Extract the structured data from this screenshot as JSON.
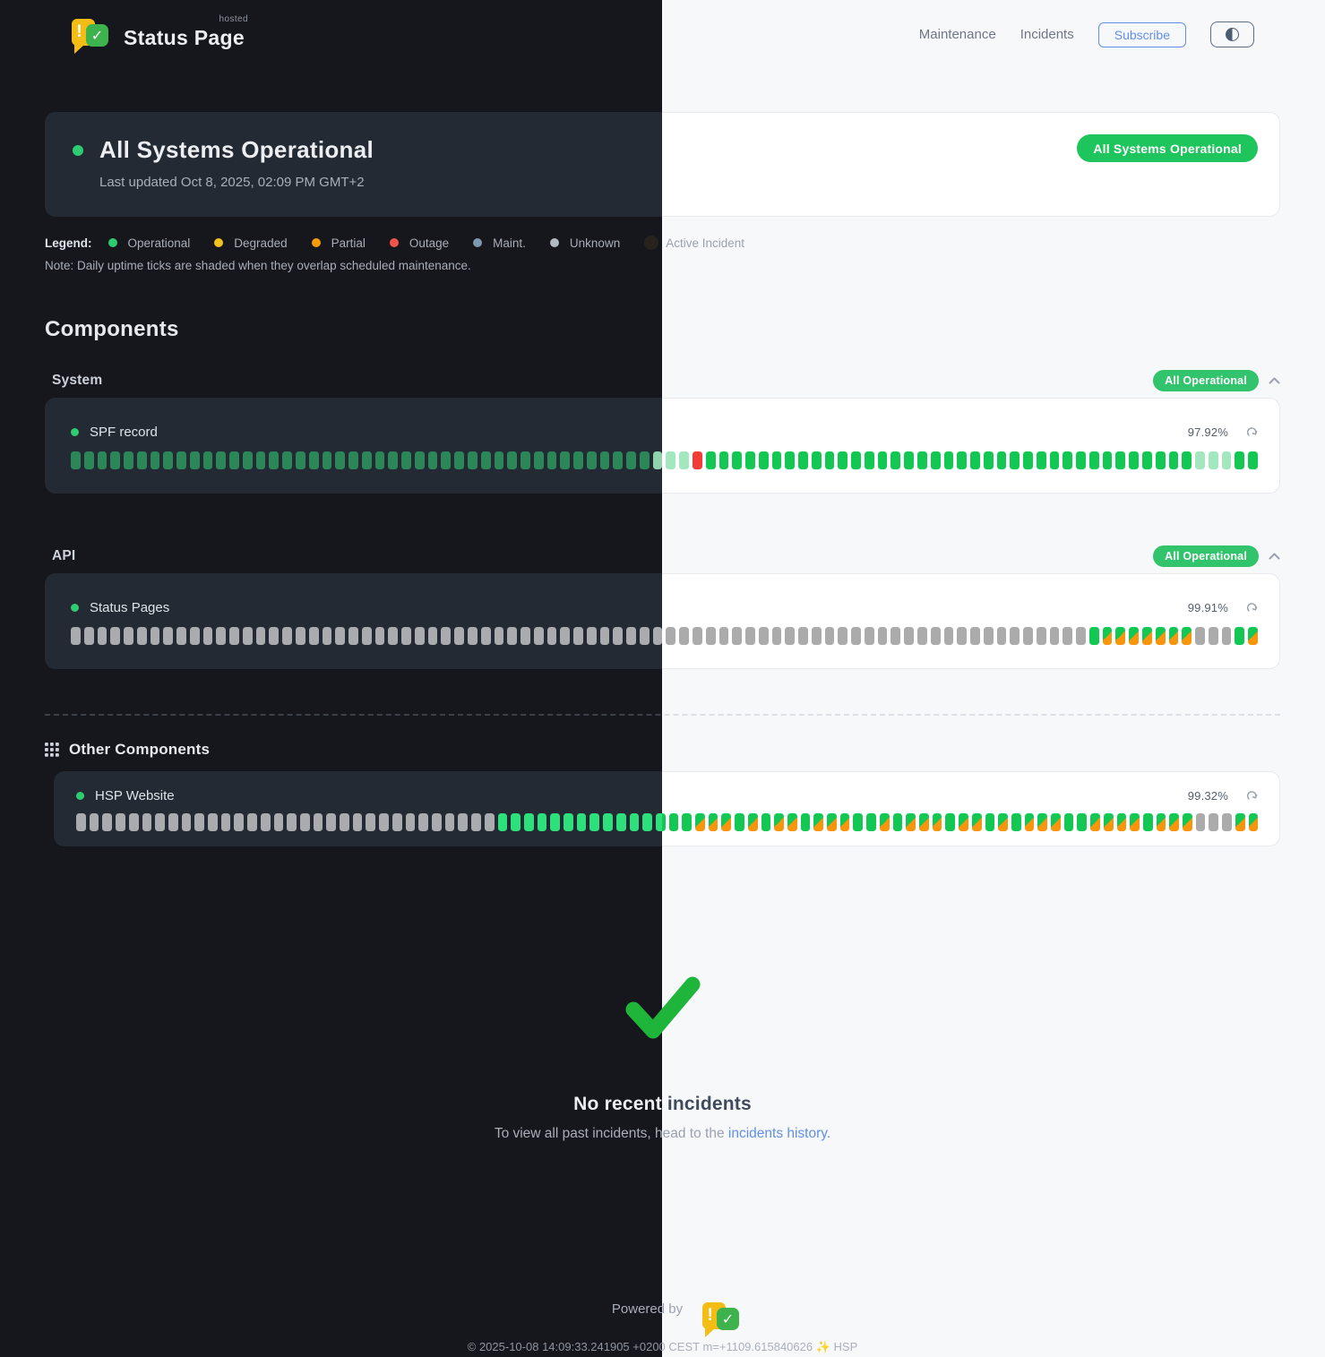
{
  "header": {
    "brand": {
      "name": "Status Page",
      "superscript": "hosted",
      "excl_glyph": "!",
      "check_glyph": "✓"
    },
    "nav": [
      {
        "label": "Maintenance"
      },
      {
        "label": "Incidents"
      }
    ],
    "subscribe_label": "Subscribe",
    "theme_toggle_icon": "contrast-half-circle"
  },
  "banner": {
    "title": "All Systems Operational",
    "updated": "Last updated Oct 8, 2025, 02:09 PM GMT+2",
    "badge": "All Systems Operational",
    "status_color": "#2ecc71"
  },
  "legend": {
    "label": "Legend:",
    "items": [
      {
        "label": "Operational",
        "color": "#2ecc71"
      },
      {
        "label": "Degraded",
        "color": "#f2c21c"
      },
      {
        "label": "Partial",
        "color": "#f59a0b"
      },
      {
        "label": "Outage",
        "color": "#f15549"
      },
      {
        "label": "Maint.",
        "color": "#7e99ad"
      },
      {
        "label": "Unknown",
        "color": "#b4bac2"
      },
      {
        "label": "Active Incident",
        "color": "#27221b"
      }
    ],
    "note": "Note: Daily uptime ticks are shaded when they overlap scheduled maintenance."
  },
  "components": {
    "heading": "Components",
    "tick_status_codes": {
      "g": "operational",
      "gf": "operational-faded",
      "r": "outage",
      "u": "unknown",
      "m": "operational-maintenance-shaded"
    },
    "groups": [
      {
        "name": "System",
        "badge": "All Operational",
        "rows": [
          {
            "name": "SPF record",
            "uptime": "97.92%",
            "ticks": [
              "g:44",
              "gf:3",
              "r:1",
              "g:37",
              "gf:3",
              "g:2"
            ]
          }
        ]
      },
      {
        "name": "API",
        "badge": "All Operational",
        "rows": [
          {
            "name": "Status Pages",
            "uptime": "99.91%",
            "ticks": [
              "u:77",
              "g:1",
              "m:7",
              "u:3",
              "g:1",
              "m:1"
            ]
          }
        ]
      }
    ],
    "other": {
      "heading": "Other Components",
      "rows": [
        {
          "name": "HSP Website",
          "uptime": "99.32%",
          "ticks": [
            "u:32",
            "g:15",
            "m:3",
            "g:1",
            "m:1",
            "g:1",
            "m:2",
            "g:1",
            "m:3",
            "g:2",
            "m:1",
            "g:1",
            "m:3",
            "g:1",
            "m:2",
            "g:1",
            "m:1",
            "g:1",
            "m:3",
            "g:2",
            "m:4",
            "g:1",
            "m:3",
            "u:3",
            "m:2"
          ]
        }
      ]
    }
  },
  "incidents_section": {
    "title": "No recent incidents",
    "subtitle_prefix": "To view all past incidents, head to the ",
    "link_label": "incidents history."
  },
  "footer": {
    "powered_by": "Powered by",
    "copyright": "© 2025-10-08 14:09:33.241905 +0200 CEST m=+1109.615840626 ✨ HSP"
  }
}
